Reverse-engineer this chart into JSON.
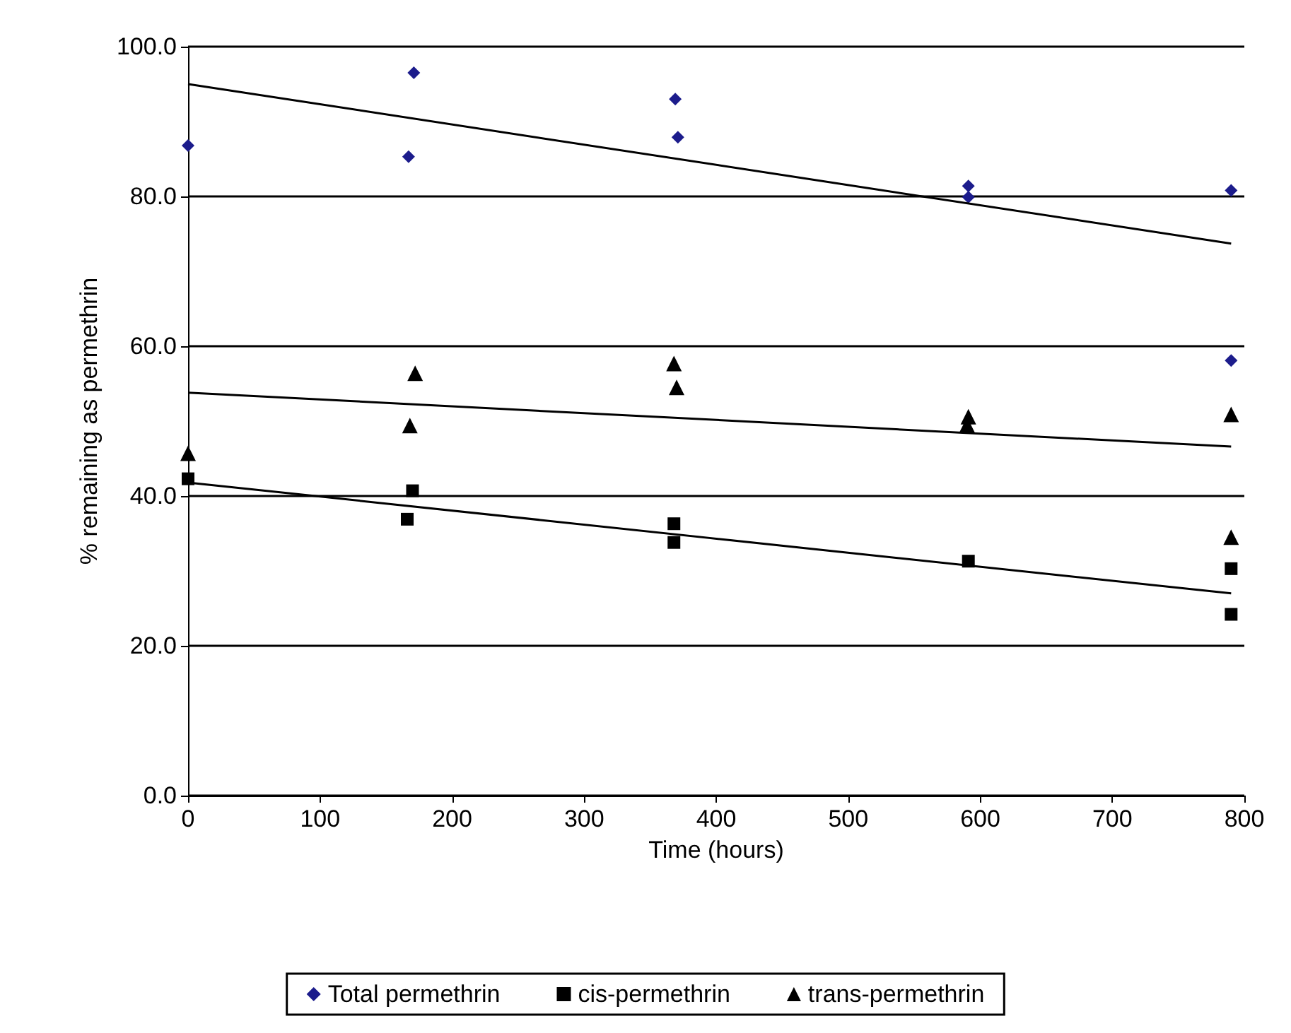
{
  "chart_data": {
    "type": "scatter",
    "xlabel": "Time (hours)",
    "ylabel": "% remaining as permethrin",
    "xlim": [
      0,
      800
    ],
    "xticks": [
      0,
      100,
      200,
      300,
      400,
      500,
      600,
      700,
      800
    ],
    "ylim": [
      0,
      100
    ],
    "yticks": [
      {
        "value": 0,
        "label": "0.0"
      },
      {
        "value": 20,
        "label": "20.0"
      },
      {
        "value": 40,
        "label": "40.0"
      },
      {
        "value": 60,
        "label": "60.0"
      },
      {
        "value": 80,
        "label": "80.0"
      },
      {
        "value": 100,
        "label": "100.0"
      }
    ],
    "grid": "y",
    "legend": "bottom",
    "series": [
      {
        "name": "Total permethrin",
        "color": "#1c1c8c",
        "marker": "diamond",
        "x": [
          0,
          167,
          171,
          369,
          371,
          591,
          591,
          790,
          790
        ],
        "values": [
          86.8,
          85.3,
          96.5,
          93.0,
          87.9,
          81.4,
          79.9,
          80.8,
          58.1
        ]
      },
      {
        "name": "cis-permethrin",
        "color": "#000000",
        "marker": "square",
        "x": [
          0,
          166,
          170,
          368,
          368,
          588,
          591,
          790,
          790
        ],
        "values": [
          42.3,
          36.9,
          40.7,
          36.3,
          33.8,
          null,
          31.3,
          30.3,
          24.2
        ]
      },
      {
        "name": "trans-permethrin",
        "color": "#000000",
        "marker": "triangle",
        "x": [
          0,
          168,
          172,
          368,
          370,
          590,
          591,
          790,
          790
        ],
        "values": [
          45.7,
          49.4,
          56.4,
          57.7,
          54.5,
          49.5,
          50.6,
          50.9,
          34.5
        ]
      },
      {
        "type": "line",
        "color": "#000000",
        "marker": "none",
        "x": [
          0,
          790
        ],
        "values": [
          95.0,
          73.7
        ]
      },
      {
        "type": "line",
        "color": "#000000",
        "marker": "none",
        "x": [
          0,
          790
        ],
        "values": [
          41.8,
          27.0
        ]
      },
      {
        "type": "line",
        "color": "#000000",
        "marker": "none",
        "x": [
          0,
          790
        ],
        "values": [
          53.8,
          46.6
        ]
      }
    ]
  }
}
